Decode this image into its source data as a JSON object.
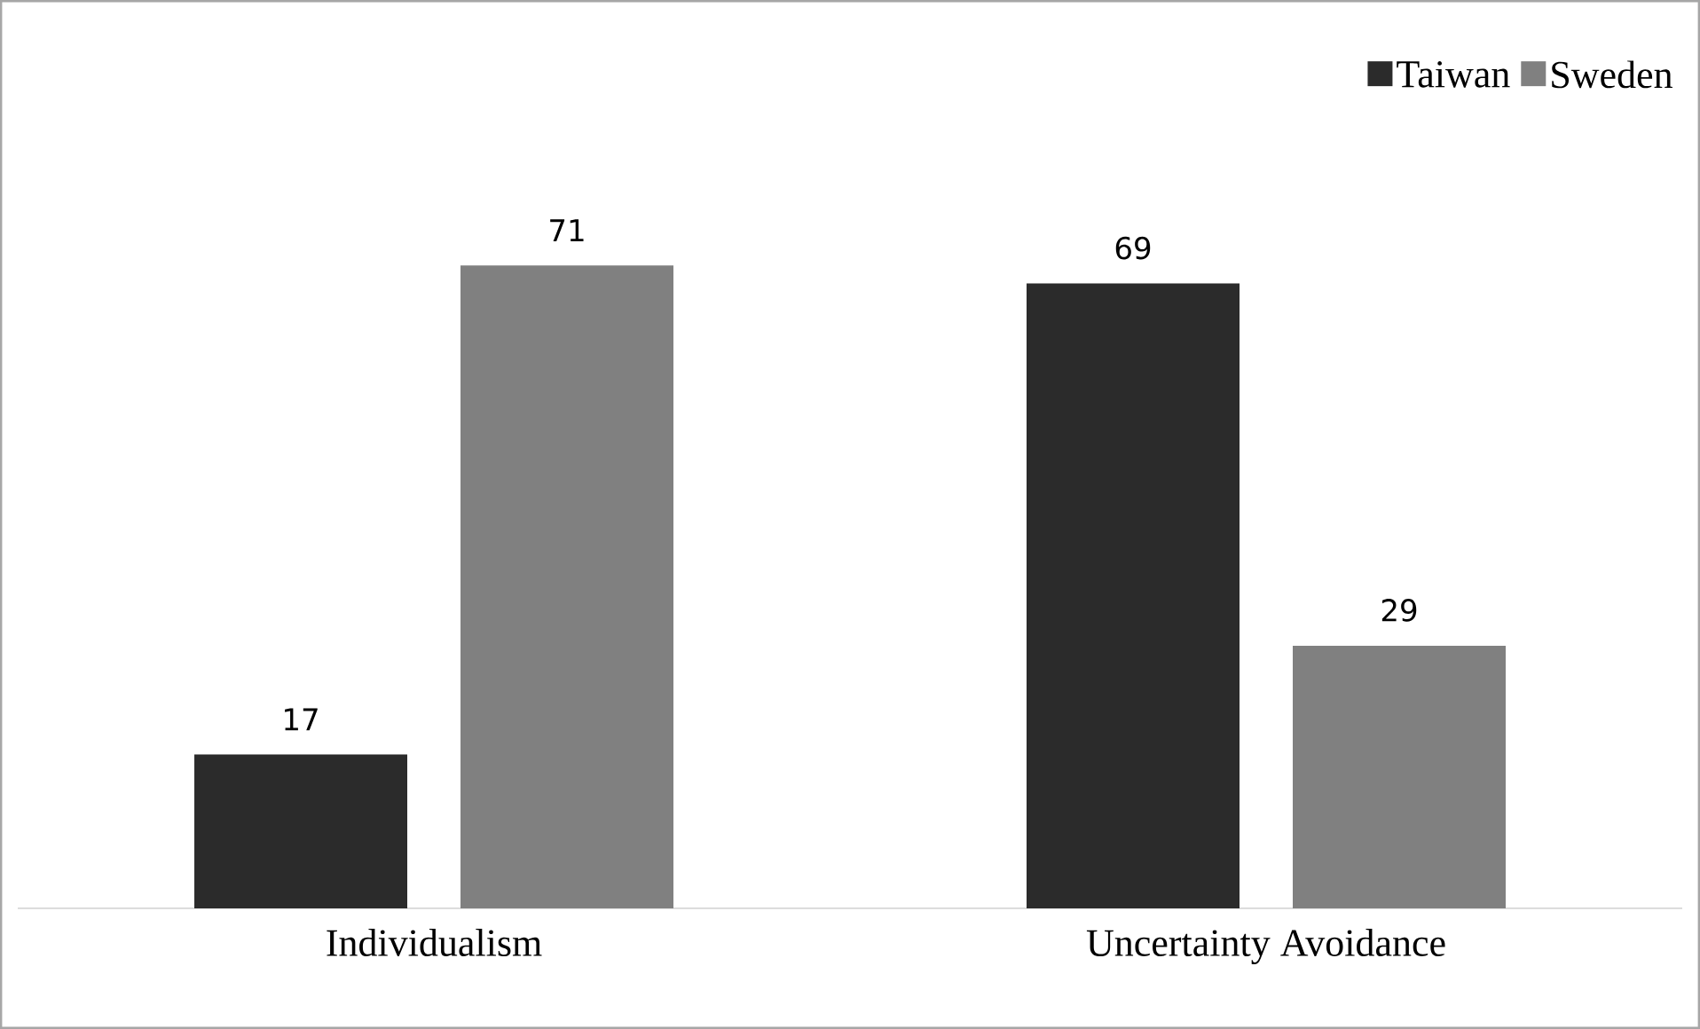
{
  "chart_data": {
    "type": "bar",
    "categories": [
      "Individualism",
      "Uncertainty Avoidance"
    ],
    "series": [
      {
        "name": "Taiwan",
        "color": "#2b2b2b",
        "values": [
          17,
          69
        ]
      },
      {
        "name": "Sweden",
        "color": "#808080",
        "values": [
          71,
          29
        ]
      }
    ],
    "data_labels": true,
    "legend": "top right"
  }
}
